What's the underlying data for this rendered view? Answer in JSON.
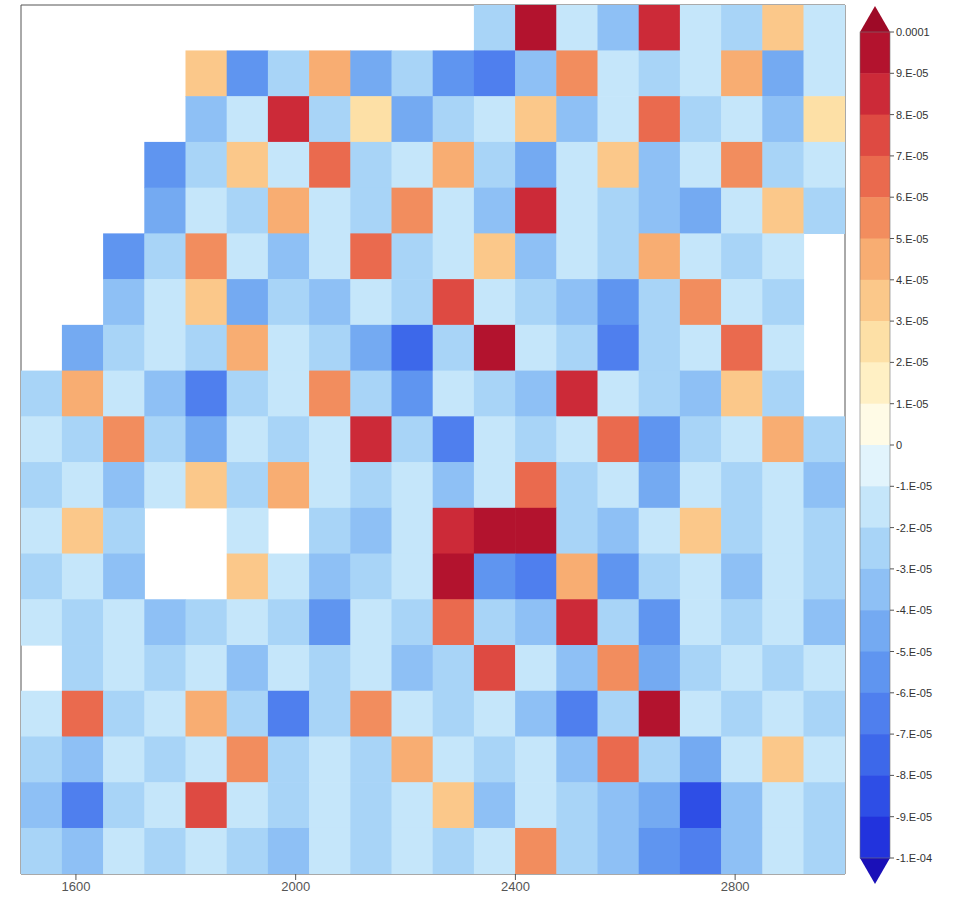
{
  "chart_data": {
    "type": "heatmap",
    "xlim": [
      1500,
      3000
    ],
    "xticks": [
      1600,
      2000,
      2400,
      2800
    ],
    "tick_labels": "x",
    "cells": [
      [
        null,
        null,
        null,
        null,
        null,
        null,
        null,
        null,
        null,
        null,
        null,
        -3e-05,
        0.0001,
        -2e-05,
        -4e-05,
        8e-05,
        -2e-05,
        -3e-05,
        3e-05,
        -2e-05
      ],
      [
        null,
        null,
        null,
        null,
        3e-05,
        -6e-05,
        -3e-05,
        4e-05,
        -5e-05,
        -3e-05,
        -6e-05,
        -7e-05,
        -4e-05,
        5e-05,
        -2e-05,
        -3e-05,
        -2e-05,
        4e-05,
        -5e-05,
        -2e-05
      ],
      [
        null,
        null,
        null,
        null,
        -4e-05,
        -2e-05,
        8e-05,
        -3e-05,
        2e-05,
        -5e-05,
        -3e-05,
        -2e-05,
        3e-05,
        -4e-05,
        -2e-05,
        6e-05,
        -3e-05,
        -2e-05,
        -4e-05,
        2e-05
      ],
      [
        null,
        null,
        null,
        -6e-05,
        -3e-05,
        3e-05,
        -2e-05,
        6e-05,
        -3e-05,
        -2e-05,
        4e-05,
        -3e-05,
        -5e-05,
        -2e-05,
        3e-05,
        -4e-05,
        -2e-05,
        5e-05,
        -3e-05,
        -2e-05
      ],
      [
        null,
        null,
        null,
        -5e-05,
        -2e-05,
        -3e-05,
        4e-05,
        -2e-05,
        -3e-05,
        5e-05,
        -2e-05,
        -4e-05,
        8e-05,
        -2e-05,
        -3e-05,
        -4e-05,
        -5e-05,
        -2e-05,
        3e-05,
        -3e-05
      ],
      [
        null,
        null,
        -6e-05,
        -3e-05,
        5e-05,
        -2e-05,
        -4e-05,
        -2e-05,
        6e-05,
        -3e-05,
        -2e-05,
        3e-05,
        -4e-05,
        -2e-05,
        -3e-05,
        4e-05,
        -2e-05,
        -3e-05,
        -2e-05,
        null
      ],
      [
        null,
        null,
        -4e-05,
        -2e-05,
        3e-05,
        -5e-05,
        -3e-05,
        -4e-05,
        -2e-05,
        -3e-05,
        7e-05,
        -2e-05,
        -3e-05,
        -4e-05,
        -6e-05,
        -3e-05,
        5e-05,
        -2e-05,
        -3e-05,
        null
      ],
      [
        null,
        -5e-05,
        -3e-05,
        -2e-05,
        -3e-05,
        4e-05,
        -2e-05,
        -3e-05,
        -5e-05,
        -8e-05,
        -3e-05,
        9e-05,
        -2e-05,
        -3e-05,
        -7e-05,
        -3e-05,
        -2e-05,
        6e-05,
        -2e-05,
        null
      ],
      [
        -3e-05,
        4e-05,
        -2e-05,
        -4e-05,
        -7e-05,
        -3e-05,
        -2e-05,
        5e-05,
        -3e-05,
        -6e-05,
        -2e-05,
        -3e-05,
        -4e-05,
        8e-05,
        -2e-05,
        -3e-05,
        -4e-05,
        3e-05,
        -3e-05,
        null
      ],
      [
        -2e-05,
        -3e-05,
        5e-05,
        -3e-05,
        -5e-05,
        -2e-05,
        -3e-05,
        -2e-05,
        8e-05,
        -3e-05,
        -7e-05,
        -2e-05,
        -3e-05,
        -2e-05,
        6e-05,
        -6e-05,
        -3e-05,
        -2e-05,
        4e-05,
        -3e-05
      ],
      [
        -3e-05,
        -2e-05,
        -4e-05,
        -2e-05,
        3e-05,
        -3e-05,
        4e-05,
        -2e-05,
        -3e-05,
        -2e-05,
        -4e-05,
        -2e-05,
        6e-05,
        -3e-05,
        -2e-05,
        -5e-05,
        -2e-05,
        -3e-05,
        -2e-05,
        -4e-05
      ],
      [
        -2e-05,
        3e-05,
        -3e-05,
        null,
        null,
        -2e-05,
        null,
        -3e-05,
        -4e-05,
        -2e-05,
        8e-05,
        0.0001,
        9e-05,
        -3e-05,
        -4e-05,
        -2e-05,
        3e-05,
        -3e-05,
        -2e-05,
        -3e-05
      ],
      [
        -3e-05,
        -2e-05,
        -4e-05,
        null,
        null,
        3e-05,
        -2e-05,
        -4e-05,
        -3e-05,
        -2e-05,
        9e-05,
        -6e-05,
        -7e-05,
        4e-05,
        -6e-05,
        -3e-05,
        -2e-05,
        -4e-05,
        -2e-05,
        -3e-05
      ],
      [
        -2e-05,
        -3e-05,
        -2e-05,
        -4e-05,
        -3e-05,
        -2e-05,
        -3e-05,
        -6e-05,
        -2e-05,
        -3e-05,
        6e-05,
        -3e-05,
        -4e-05,
        8e-05,
        -3e-05,
        -6e-05,
        -2e-05,
        -3e-05,
        -2e-05,
        -4e-05
      ],
      [
        null,
        -3e-05,
        -2e-05,
        -3e-05,
        -2e-05,
        -4e-05,
        -2e-05,
        -3e-05,
        -2e-05,
        -4e-05,
        -3e-05,
        7e-05,
        -2e-05,
        -4e-05,
        5e-05,
        -5e-05,
        -3e-05,
        -2e-05,
        -3e-05,
        -2e-05
      ],
      [
        -2e-05,
        6e-05,
        -3e-05,
        -2e-05,
        4e-05,
        -3e-05,
        -7e-05,
        -3e-05,
        5e-05,
        -2e-05,
        -3e-05,
        -2e-05,
        -4e-05,
        -7e-05,
        -3e-05,
        9e-05,
        -2e-05,
        -3e-05,
        -2e-05,
        -3e-05
      ],
      [
        -3e-05,
        -4e-05,
        -2e-05,
        -3e-05,
        -2e-05,
        5e-05,
        -3e-05,
        -2e-05,
        -3e-05,
        4e-05,
        -2e-05,
        -3e-05,
        -2e-05,
        -4e-05,
        6e-05,
        -3e-05,
        -5e-05,
        -2e-05,
        3e-05,
        -2e-05
      ],
      [
        -4e-05,
        -7e-05,
        -3e-05,
        -2e-05,
        7e-05,
        -2e-05,
        -3e-05,
        -2e-05,
        -3e-05,
        -2e-05,
        3e-05,
        -4e-05,
        -2e-05,
        -3e-05,
        -4e-05,
        -5e-05,
        -9e-05,
        -4e-05,
        -2e-05,
        -3e-05
      ],
      [
        -3e-05,
        -4e-05,
        -2e-05,
        -3e-05,
        -2e-05,
        -3e-05,
        -4e-05,
        -2e-05,
        -3e-05,
        -2e-05,
        -3e-05,
        -2e-05,
        5e-05,
        -3e-05,
        -4e-05,
        -6e-05,
        -7e-05,
        -4e-05,
        -2e-05,
        -3e-05
      ]
    ],
    "clim": [
      -0.0001,
      0.0001
    ],
    "cticks": [
      0.0001,
      {
        "value": 9e-05,
        "label": "9.E-05"
      },
      {
        "value": 8e-05,
        "label": "8.E-05"
      },
      {
        "value": 7e-05,
        "label": "7.E-05"
      },
      {
        "value": 6e-05,
        "label": "6.E-05"
      },
      {
        "value": 5e-05,
        "label": "5.E-05"
      },
      {
        "value": 4e-05,
        "label": "4.E-05"
      },
      {
        "value": 3e-05,
        "label": "3.E-05"
      },
      {
        "value": 2e-05,
        "label": "2.E-05"
      },
      {
        "value": 1e-05,
        "label": "1.E-05"
      },
      0,
      {
        "value": -1e-05,
        "label": "-1.E-05"
      },
      {
        "value": -2e-05,
        "label": "-2.E-05"
      },
      {
        "value": -3e-05,
        "label": "-3.E-05"
      },
      {
        "value": -4e-05,
        "label": "-4.E-05"
      },
      {
        "value": -5e-05,
        "label": "-5.E-05"
      },
      {
        "value": -6e-05,
        "label": "-6.E-05"
      },
      {
        "value": -7e-05,
        "label": "-7.E-05"
      },
      {
        "value": -8e-05,
        "label": "-8.E-05"
      },
      {
        "value": -9e-05,
        "label": "-9.E-05"
      },
      {
        "value": -0.0001,
        "label": "-1.E-04"
      }
    ]
  }
}
